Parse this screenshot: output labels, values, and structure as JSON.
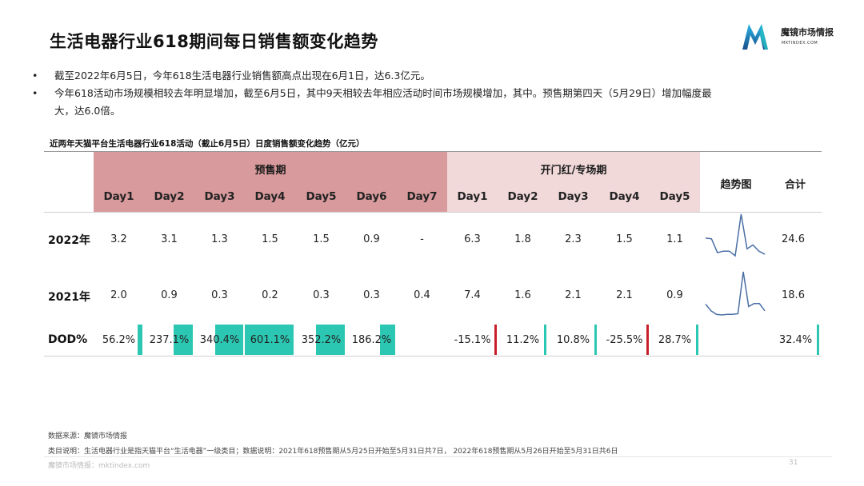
{
  "title": "生活电器行业618期间每日销售额变化趋势",
  "brand": {
    "name": "魔镜市场情报",
    "domain": "MKTINDEX.COM"
  },
  "bullets": [
    "截至2022年6月5日，今年618生活电器行业销售额高点出现在6月1日，达6.3亿元。",
    "今年618活动市场规模相较去年明显增加，截至6月5日，其中9天相较去年相应活动时间市场规模增加，其中。预售期第四天（5月29日）增加幅度最",
    "大，达6.0倍。"
  ],
  "table": {
    "subtitle": "近两年天猫平台生活电器行业618活动（截止6月5日）日度销售额变化趋势（亿元）",
    "group_presale": "预售期",
    "group_open": "开门红/专场期",
    "col_trend": "趋势图",
    "col_total": "合计",
    "days": [
      "Day1",
      "Day2",
      "Day3",
      "Day4",
      "Day5",
      "Day6",
      "Day7",
      "Day1",
      "Day2",
      "Day3",
      "Day4",
      "Day5"
    ],
    "rows": [
      {
        "label": "2022年",
        "values": [
          "3.2",
          "3.1",
          "1.3",
          "1.5",
          "1.5",
          "0.9",
          "-",
          "6.3",
          "1.8",
          "2.3",
          "1.5",
          "1.1"
        ],
        "total": "24.6"
      },
      {
        "label": "2021年",
        "values": [
          "2.0",
          "0.9",
          "0.3",
          "0.2",
          "0.3",
          "0.3",
          "0.4",
          "7.4",
          "1.6",
          "2.1",
          "2.1",
          "0.9"
        ],
        "total": "18.6"
      },
      {
        "label": "DOD%",
        "values": [
          "56.2%",
          "237.1%",
          "340.4%",
          "601.1%",
          "352.2%",
          "186.2%",
          "",
          "-15.1%",
          "11.2%",
          "10.8%",
          "-25.5%",
          "28.7%"
        ],
        "total": "32.4%"
      }
    ],
    "dod_numeric": [
      56.2,
      237.1,
      340.4,
      601.1,
      352.2,
      186.2,
      null,
      -15.1,
      11.2,
      10.8,
      -25.5,
      28.7
    ],
    "dod_total_numeric": 32.4,
    "spark_2022": [
      3.2,
      3.1,
      1.3,
      1.5,
      1.5,
      0.9,
      6.3,
      1.8,
      2.3,
      1.5,
      1.1
    ],
    "spark_2021": [
      2.0,
      0.9,
      0.3,
      0.2,
      0.3,
      0.3,
      0.4,
      7.4,
      1.6,
      2.1,
      2.1,
      0.9
    ]
  },
  "colors": {
    "presale_header": "#d89a9c",
    "open_header": "#f1d9da",
    "positive_bar": "#2bc7b2",
    "negative_bar": "#c8202a",
    "sparkline": "#4a6fa5"
  },
  "footer": {
    "source": "数据来源：魔镜市场情报",
    "note": "类目说明：生活电器行业是指天猫平台“生活电器”一级类目；数据说明：2021年618预售期从5月25日开始至5月31日共7日，  2022年618预售期从5月26日开始至5月31日共6日",
    "watermark": "魔镜市场情报：mktindex.com",
    "page": "31"
  }
}
